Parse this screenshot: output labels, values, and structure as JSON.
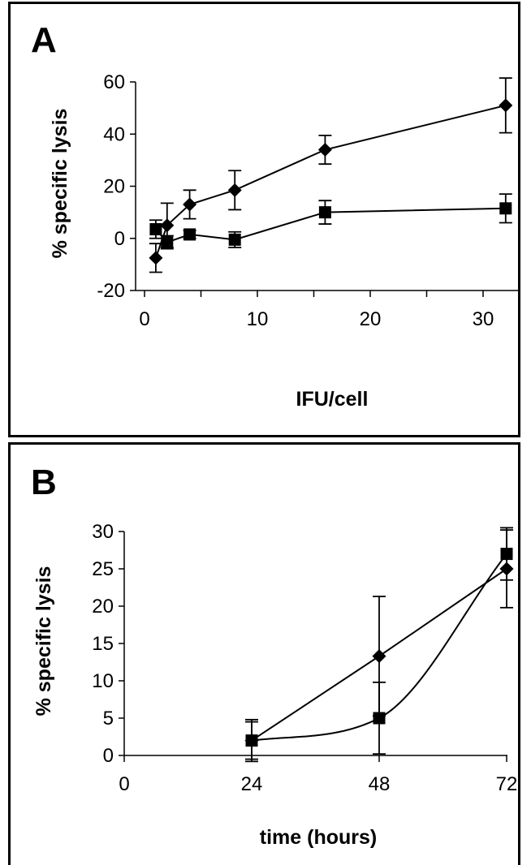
{
  "chart_data": [
    {
      "type": "line",
      "panel_label": "A",
      "xlabel": "IFU/cell",
      "ylabel": "% specific lysis",
      "xlim": [
        0,
        33
      ],
      "ylim": [
        -20,
        60
      ],
      "x_ticks": [
        0,
        10,
        20,
        30
      ],
      "y_ticks": [
        -20,
        0,
        20,
        40,
        60
      ],
      "series": [
        {
          "marker": "diamond",
          "x": [
            1,
            2,
            4,
            8,
            16,
            32
          ],
          "y": [
            -7.5,
            5,
            13,
            18.5,
            34,
            51
          ],
          "err": [
            5.5,
            8.5,
            5.5,
            7.5,
            5.5,
            10.5
          ]
        },
        {
          "marker": "square",
          "x": [
            1,
            2,
            4,
            8,
            16,
            32
          ],
          "y": [
            3.5,
            -1.5,
            1.5,
            -0.5,
            10,
            11.5
          ],
          "err": [
            3.5,
            2.5,
            1.5,
            3,
            4.5,
            5.5
          ]
        }
      ]
    },
    {
      "type": "line",
      "panel_label": "B",
      "xlabel": "time (hours)",
      "ylabel": "% specific lysis",
      "xlim": [
        0,
        75
      ],
      "ylim": [
        0,
        30
      ],
      "x_ticks": [
        0,
        24,
        48,
        72
      ],
      "y_ticks": [
        0,
        5,
        10,
        15,
        20,
        25,
        30
      ],
      "series": [
        {
          "marker": "diamond",
          "smooth": false,
          "x": [
            24,
            48,
            72
          ],
          "y": [
            2,
            13.3,
            25
          ],
          "err": [
            2.8,
            8,
            5.2
          ]
        },
        {
          "marker": "square",
          "smooth": true,
          "x": [
            24,
            48,
            72
          ],
          "y": [
            2,
            5,
            27
          ],
          "err": [
            2.5,
            4.8,
            3.5
          ]
        }
      ]
    }
  ]
}
